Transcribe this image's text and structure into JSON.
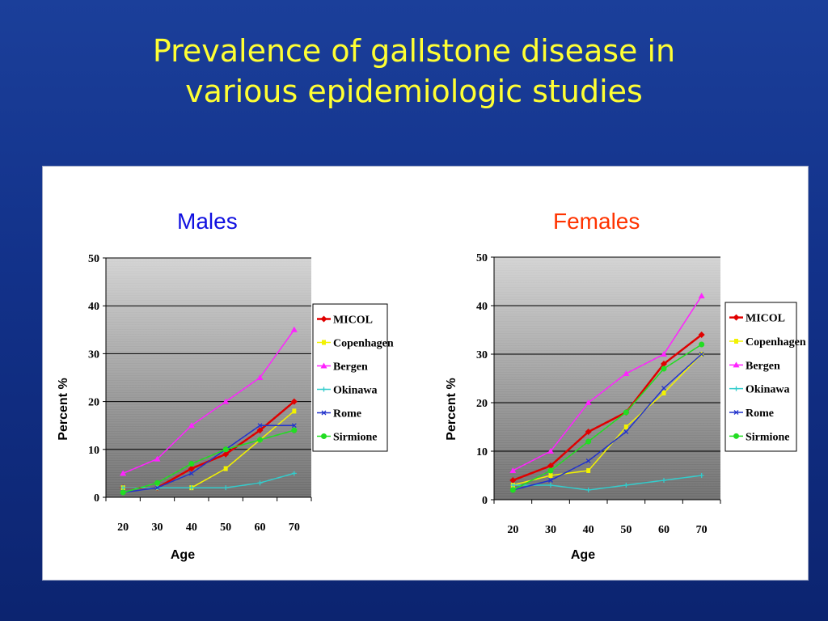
{
  "title": {
    "line1": "Prevalence of gallstone disease in",
    "line2": "various epidemiologic studies"
  },
  "colors": {
    "title": "#ffff33",
    "males_title": "#1010e0",
    "females_title": "#ff3300",
    "MICOL": "#e00000",
    "Copenhagen": "#f2f200",
    "Bergen": "#ff22ff",
    "Okinawa": "#33cccc",
    "Rome": "#2233cc",
    "Sirmione": "#22dd22"
  },
  "chart_data": [
    {
      "type": "line",
      "title": "Males",
      "xlabel": "Age",
      "ylabel": "Percent %",
      "categories": [
        "20",
        "30",
        "40",
        "50",
        "60",
        "70"
      ],
      "ylim": [
        0,
        50
      ],
      "yticks": [
        "0",
        "10",
        "20",
        "30",
        "40",
        "50"
      ],
      "grid": true,
      "legend": "right",
      "series": [
        {
          "name": "MICOL",
          "values": [
            2,
            2,
            6,
            9,
            14,
            20
          ]
        },
        {
          "name": "Copenhagen",
          "values": [
            2,
            2,
            2,
            6,
            12,
            18
          ]
        },
        {
          "name": "Bergen",
          "values": [
            5,
            8,
            15,
            20,
            25,
            35
          ]
        },
        {
          "name": "Okinawa",
          "values": [
            2,
            2,
            2,
            2,
            3,
            5
          ]
        },
        {
          "name": "Rome",
          "values": [
            1,
            2,
            5,
            10,
            15,
            15
          ]
        },
        {
          "name": "Sirmione",
          "values": [
            1,
            3,
            7,
            10,
            12,
            14
          ]
        }
      ]
    },
    {
      "type": "line",
      "title": "Females",
      "xlabel": "Age",
      "ylabel": "Percent %",
      "categories": [
        "20",
        "30",
        "40",
        "50",
        "60",
        "70"
      ],
      "ylim": [
        0,
        50
      ],
      "yticks": [
        "0",
        "10",
        "20",
        "30",
        "40",
        "50"
      ],
      "grid": true,
      "legend": "right",
      "series": [
        {
          "name": "MICOL",
          "values": [
            4,
            7,
            14,
            18,
            28,
            34
          ]
        },
        {
          "name": "Copenhagen",
          "values": [
            3,
            5,
            6,
            15,
            22,
            30
          ]
        },
        {
          "name": "Bergen",
          "values": [
            6,
            10,
            20,
            26,
            30,
            42
          ]
        },
        {
          "name": "Okinawa",
          "values": [
            3,
            3,
            2,
            3,
            4,
            5
          ]
        },
        {
          "name": "Rome",
          "values": [
            2,
            4,
            8,
            14,
            23,
            30
          ]
        },
        {
          "name": "Sirmione",
          "values": [
            2,
            6,
            12,
            18,
            27,
            32
          ]
        }
      ]
    }
  ]
}
